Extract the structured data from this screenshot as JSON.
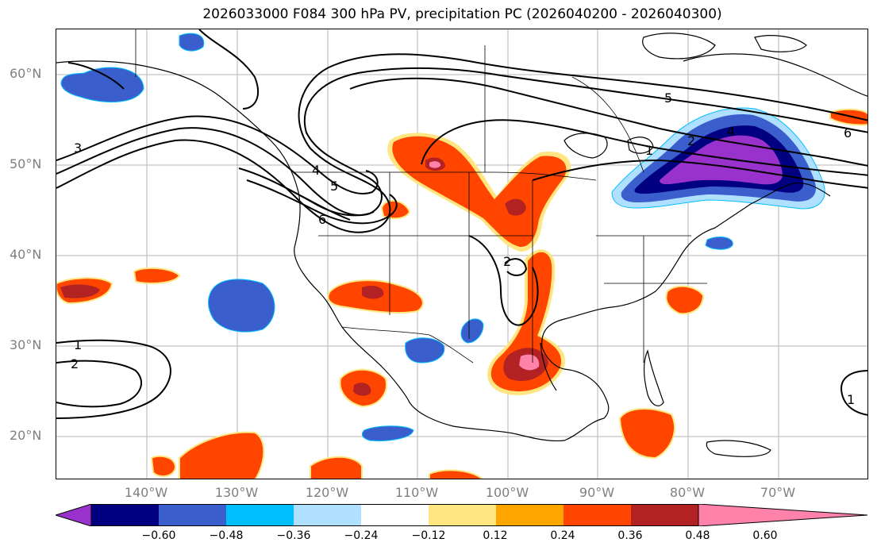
{
  "title": "2026033000 F084 300 hPa PV, precipitation PC (2026040200 - 2026040300)",
  "lat_labels": [
    "60°N",
    "50°N",
    "40°N",
    "30°N",
    "20°N"
  ],
  "lon_labels": [
    "140°W",
    "130°W",
    "120°W",
    "110°W",
    "100°W",
    "90°W",
    "80°W",
    "70°W"
  ],
  "contour_labels": [
    "1",
    "2",
    "3",
    "4",
    "5",
    "6"
  ],
  "colorbar": {
    "ticks": [
      "−0.60",
      "−0.48",
      "−0.36",
      "−0.24",
      "−0.12",
      "0.12",
      "0.24",
      "0.36",
      "0.48",
      "0.60"
    ],
    "colors": [
      "#9932cc",
      "#000080",
      "#3a5fcd",
      "#00bfff",
      "#b0e0ff",
      "#ffffff",
      "#ffe680",
      "#ffa500",
      "#ff4500",
      "#b22222",
      "#ff82ab"
    ]
  }
}
